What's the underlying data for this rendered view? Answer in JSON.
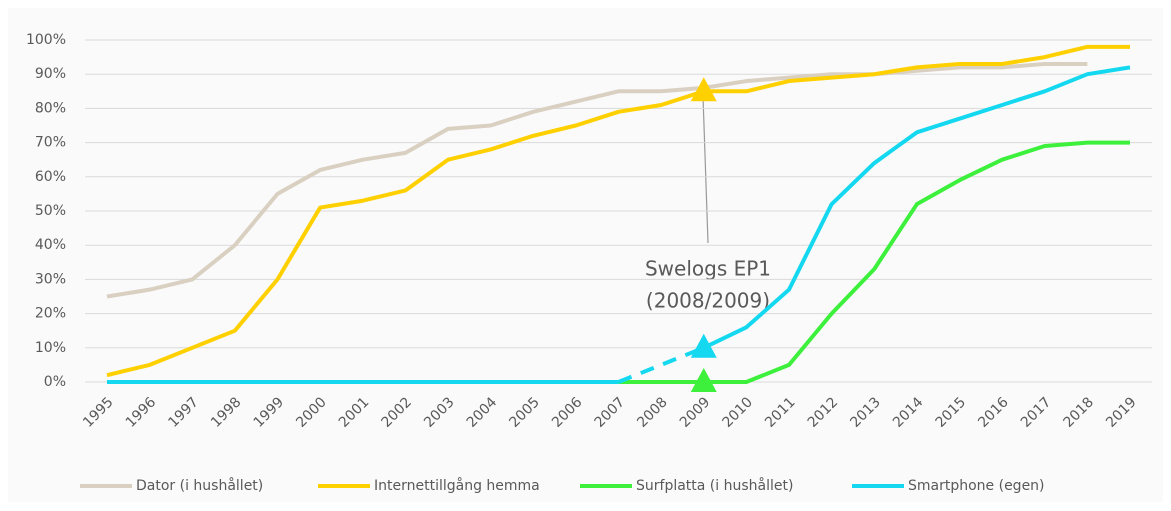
{
  "chart_data": {
    "type": "line",
    "categories": [
      "1995",
      "1996",
      "1997",
      "1998",
      "1999",
      "2000",
      "2001",
      "2002",
      "2003",
      "2004",
      "2005",
      "2006",
      "2007",
      "2008",
      "2009",
      "2010",
      "2011",
      "2012",
      "2013",
      "2014",
      "2015",
      "2016",
      "2017",
      "2018",
      "2019"
    ],
    "series": [
      {
        "name": "Dator (i hushållet)",
        "color": "#d9d0c1",
        "values": [
          25,
          27,
          30,
          40,
          55,
          62,
          65,
          67,
          74,
          75,
          79,
          82,
          85,
          85,
          86,
          88,
          89,
          90,
          90,
          91,
          92,
          92,
          93,
          93,
          null
        ]
      },
      {
        "name": "Internettillgång hemma",
        "color": "#ffd000",
        "values": [
          2,
          5,
          10,
          15,
          30,
          51,
          53,
          56,
          65,
          68,
          72,
          75,
          79,
          81,
          85,
          85,
          88,
          89,
          90,
          92,
          93,
          93,
          95,
          98,
          98
        ]
      },
      {
        "name": "Surfplatta (i hushållet)",
        "color": "#3cf03c",
        "values": [
          0,
          0,
          0,
          0,
          0,
          0,
          0,
          0,
          0,
          0,
          0,
          0,
          0,
          0,
          0,
          0,
          5,
          20,
          33,
          52,
          59,
          65,
          69,
          70,
          70
        ]
      },
      {
        "name": "Smartphone (egen)",
        "color": "#14d8f0",
        "values": [
          0,
          0,
          0,
          0,
          0,
          0,
          0,
          0,
          0,
          0,
          0,
          0,
          0,
          null,
          10,
          16,
          27,
          52,
          64,
          73,
          77,
          81,
          85,
          90,
          92
        ]
      }
    ],
    "ylim": [
      0,
      100
    ],
    "yticks": [
      {
        "value": 0,
        "label": "0%"
      },
      {
        "value": 10,
        "label": "10%"
      },
      {
        "value": 20,
        "label": "20%"
      },
      {
        "value": 30,
        "label": "30%"
      },
      {
        "value": 40,
        "label": "40%"
      },
      {
        "value": 50,
        "label": "50%"
      },
      {
        "value": 60,
        "label": "60%"
      },
      {
        "value": 70,
        "label": "70%"
      },
      {
        "value": 80,
        "label": "80%"
      },
      {
        "value": 90,
        "label": "90%"
      },
      {
        "value": 100,
        "label": "100%"
      }
    ],
    "grid": true,
    "legend": "bottom",
    "annotation": [
      "Swelogs EP1",
      "(2008/2009)"
    ]
  }
}
